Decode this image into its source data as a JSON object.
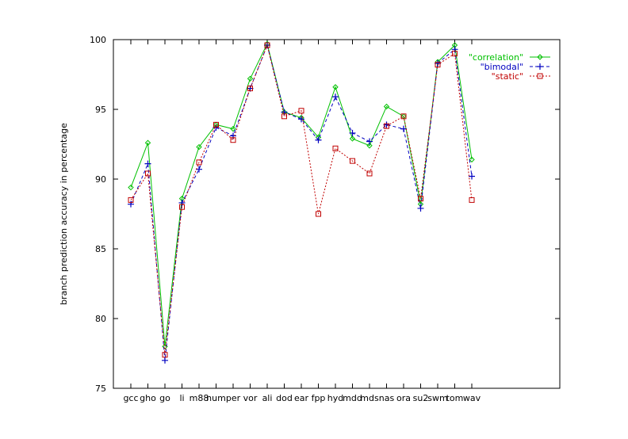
{
  "chart_data": {
    "type": "line",
    "title": "",
    "xlabel": "",
    "ylabel": "branch prediction accuracy in percentage",
    "ylim": [
      75,
      100
    ],
    "yticks": [
      75,
      80,
      85,
      90,
      95,
      100
    ],
    "categories": [
      "gcc",
      "gho",
      "go",
      "li",
      "m88",
      "num",
      "per",
      "vor",
      "ali",
      "dod",
      "ear",
      "fpp",
      "hyd",
      "mdd",
      "mds",
      "nas",
      "ora",
      "su2",
      "swm",
      "tom",
      "wav"
    ],
    "category_labels": [
      "gcc",
      "gho",
      "go",
      "li",
      "m88",
      "num",
      "per",
      "vor",
      "ali",
      "dod",
      "ear",
      "fpp",
      "hyd",
      "mdd",
      "mds",
      "nas",
      "ora",
      "su2",
      "swm",
      "tom",
      "wav"
    ],
    "legend_position": "top-right",
    "grid": false,
    "series": [
      {
        "name": "\"correlation\"",
        "color": "#00c000",
        "marker": "diamond",
        "dash": "",
        "values": [
          89.4,
          92.6,
          78.0,
          88.6,
          92.3,
          93.9,
          93.6,
          97.2,
          99.7,
          94.8,
          94.4,
          93.0,
          96.6,
          92.9,
          92.4,
          95.2,
          94.5,
          88.2,
          98.4,
          99.6,
          91.4
        ]
      },
      {
        "name": "\"bimodal\"",
        "color": "#0000c0",
        "marker": "plus",
        "dash": "4,3",
        "values": [
          88.2,
          91.1,
          77.0,
          88.3,
          90.7,
          93.7,
          93.1,
          96.5,
          99.6,
          94.8,
          94.3,
          92.8,
          95.9,
          93.3,
          92.7,
          93.9,
          93.6,
          87.9,
          98.3,
          99.3,
          90.2
        ]
      },
      {
        "name": "\"static\"",
        "color": "#c00000",
        "marker": "square",
        "dash": "2,2",
        "values": [
          88.5,
          90.4,
          77.4,
          88.0,
          91.2,
          93.9,
          92.8,
          96.5,
          99.6,
          94.5,
          94.9,
          87.5,
          92.2,
          91.3,
          90.4,
          93.8,
          94.5,
          88.6,
          98.2,
          99.0,
          88.5
        ]
      }
    ]
  }
}
